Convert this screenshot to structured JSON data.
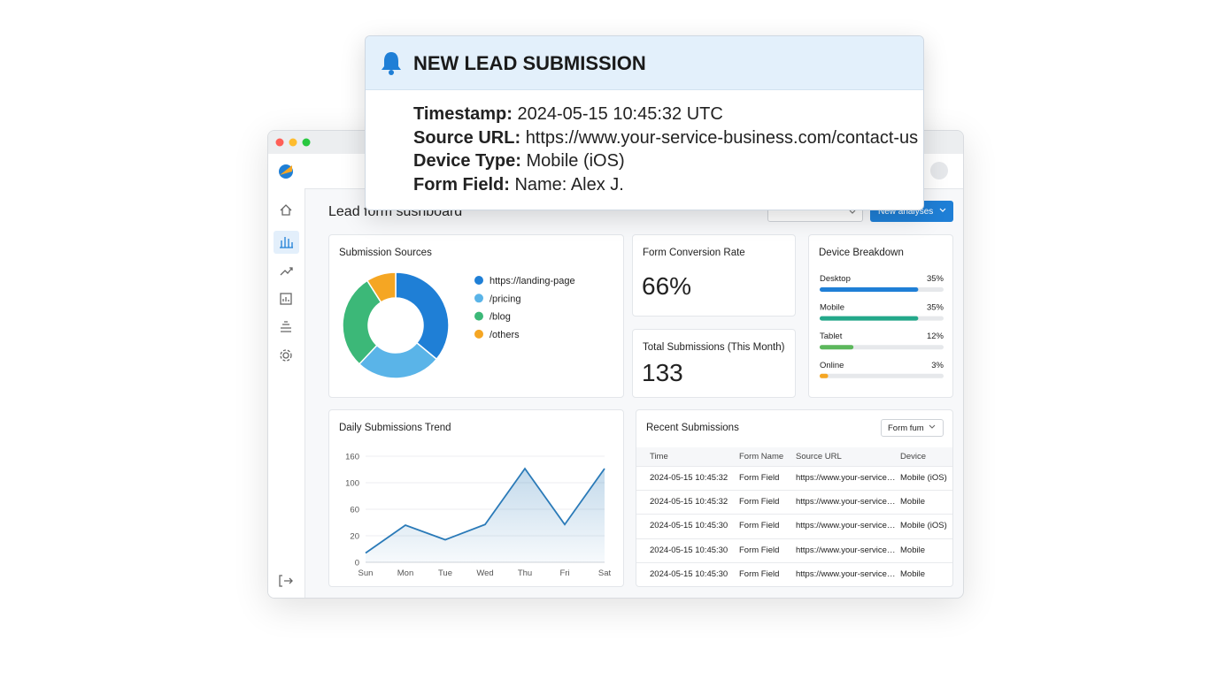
{
  "notification": {
    "title": "NEW LEAD SUBMISSION",
    "fields": [
      {
        "label": "Timestamp:",
        "value": "2024-05-15 10:45:32 UTC"
      },
      {
        "label": "Source URL:",
        "value": "https://www.your-service-business.com/contact-us"
      },
      {
        "label": "Device Type:",
        "value": "Mobile (iOS)"
      },
      {
        "label": "Form Field:",
        "value": "Name: Alex J."
      }
    ]
  },
  "dashboard": {
    "title": "Lead form sushboard",
    "primary_button": "New analyses",
    "kpis": [
      {
        "title": "Form Conversion Rate",
        "value": "66%"
      },
      {
        "title": "Total Submissions (This Month)",
        "value": "133"
      }
    ]
  },
  "recent": {
    "title": "Recent Submissions",
    "filter": "Form fum",
    "columns": [
      "Time",
      "Form Name",
      "Source URL",
      "Device"
    ],
    "rows": [
      [
        "2024-05-15 10:45:32",
        "Form Field",
        "https://www.your-service…",
        "Mobile (iOS)"
      ],
      [
        "2024-05-15 10:45:32",
        "Form Field",
        "https://www.your-service…",
        "Mobile"
      ],
      [
        "2024-05-15 10:45:30",
        "Form Field",
        "https://www.your-service…",
        "Mobile (iOS)"
      ],
      [
        "2024-05-15 10:45:30",
        "Form Field",
        "https://www.your-service…",
        "Mobile"
      ],
      [
        "2024-05-15 10:45:30",
        "Form Field",
        "https://www.your-service…",
        "Mobile"
      ]
    ]
  },
  "chart_data": [
    {
      "type": "pie",
      "title": "Submission Sources",
      "donut": true,
      "categories": [
        "https://landing-page",
        "/pricing",
        "/blog",
        "/others"
      ],
      "values": [
        36,
        26,
        29,
        9
      ],
      "colors": [
        "#1f7fd6",
        "#5ab4e8",
        "#3cb878",
        "#f5a623"
      ]
    },
    {
      "type": "bar",
      "title": "Device Breakdown",
      "orientation": "horizontal",
      "categories": [
        "Desktop",
        "Mobile",
        "Tablet",
        "Online"
      ],
      "values": [
        35,
        35,
        12,
        3
      ],
      "value_labels": [
        "35%",
        "35%",
        "12%",
        "3%"
      ],
      "colors": [
        "#1f7fd6",
        "#23a88a",
        "#5cb85c",
        "#f5a623"
      ],
      "xlim": [
        0,
        44
      ]
    },
    {
      "type": "line",
      "title": "Daily Submissions Trend",
      "categories": [
        "Sun",
        "Mon",
        "Tue",
        "Wed",
        "Thu",
        "Fri",
        "Sat"
      ],
      "values": [
        7,
        36,
        17,
        37,
        132,
        37,
        132
      ],
      "ylim": [
        0,
        160
      ],
      "yticks": [
        0,
        20,
        60,
        100,
        160
      ],
      "color": "#2a7ab8",
      "grid": true
    }
  ]
}
